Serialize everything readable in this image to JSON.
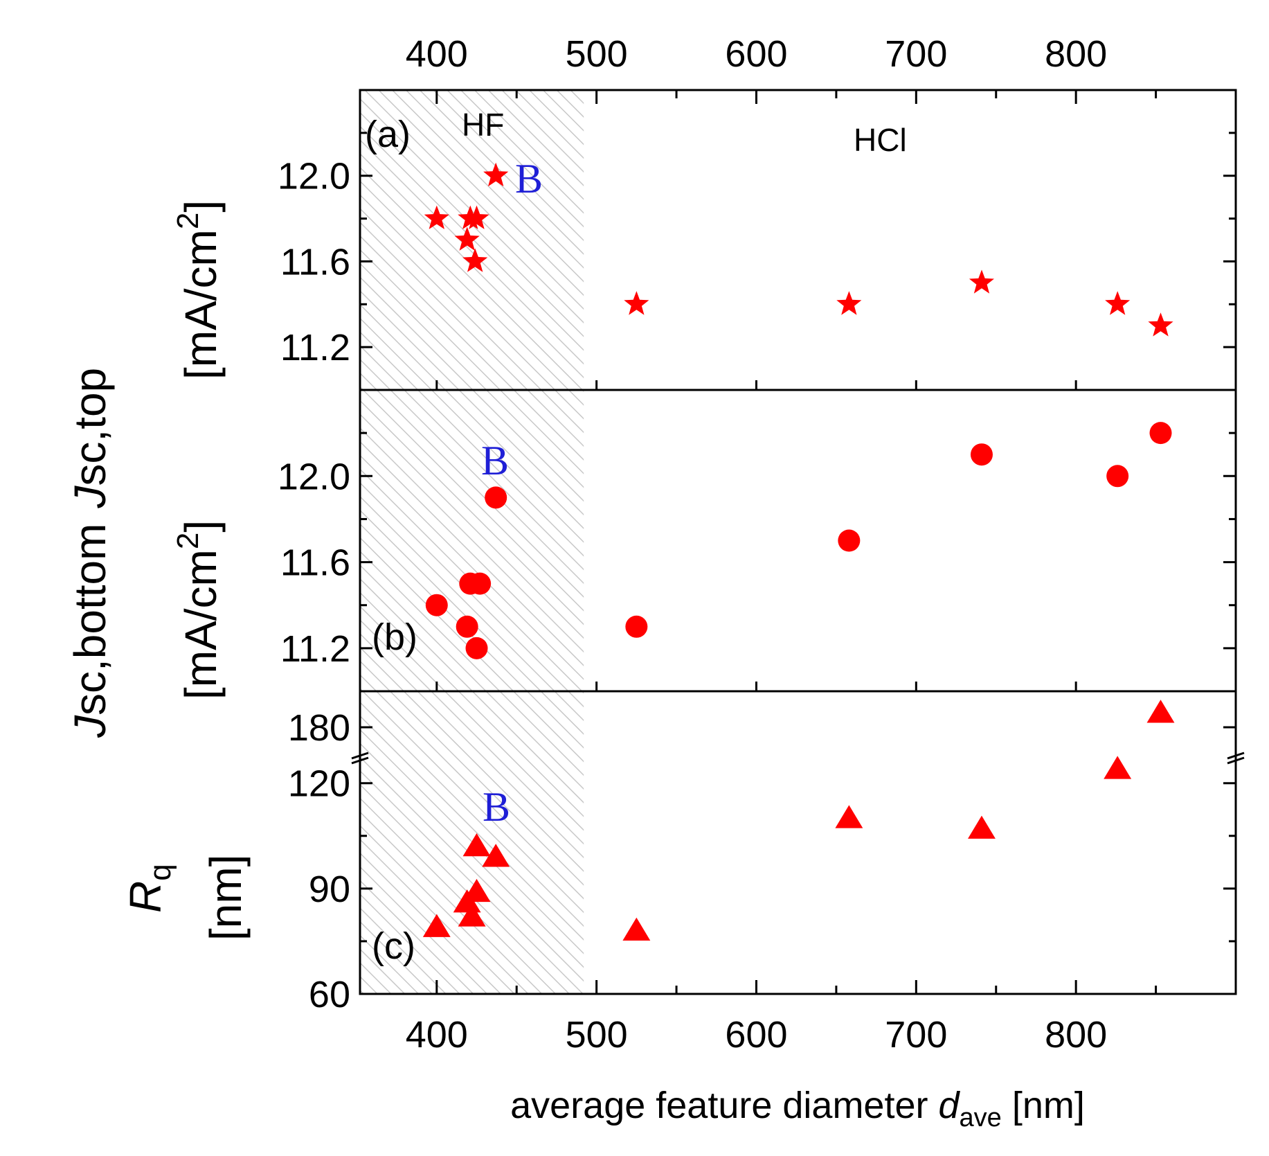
{
  "chart_data": [
    {
      "type": "scatter",
      "panel": "(a)",
      "marker": "star",
      "ylabel": "Jsc,top [mA/cm2]",
      "ylim": [
        11.0,
        12.4
      ],
      "yticks": [
        "11.2",
        "11.6",
        "12.0"
      ],
      "region_labels": [
        "HF",
        "HCl"
      ],
      "annotation": "B",
      "points": [
        {
          "x": 400,
          "y": 11.8
        },
        {
          "x": 419,
          "y": 11.7
        },
        {
          "x": 421,
          "y": 11.8
        },
        {
          "x": 425,
          "y": 11.8
        },
        {
          "x": 424,
          "y": 11.6
        },
        {
          "x": 437,
          "y": 12.0
        },
        {
          "x": 525,
          "y": 11.4
        },
        {
          "x": 658,
          "y": 11.4
        },
        {
          "x": 741,
          "y": 11.5
        },
        {
          "x": 826,
          "y": 11.4
        },
        {
          "x": 853,
          "y": 11.3
        }
      ]
    },
    {
      "type": "scatter",
      "panel": "(b)",
      "marker": "circle",
      "ylabel": "Jsc,bottom [mA/cm2]",
      "ylim": [
        11.0,
        12.4
      ],
      "yticks": [
        "11.2",
        "11.6",
        "12.0"
      ],
      "annotation": "B",
      "points": [
        {
          "x": 400,
          "y": 11.4
        },
        {
          "x": 419,
          "y": 11.3
        },
        {
          "x": 421,
          "y": 11.5
        },
        {
          "x": 427,
          "y": 11.5
        },
        {
          "x": 425,
          "y": 11.2
        },
        {
          "x": 437,
          "y": 11.9
        },
        {
          "x": 525,
          "y": 11.3
        },
        {
          "x": 658,
          "y": 11.7
        },
        {
          "x": 741,
          "y": 12.1
        },
        {
          "x": 826,
          "y": 12.0
        },
        {
          "x": 853,
          "y": 12.2
        }
      ]
    },
    {
      "type": "scatter",
      "panel": "(c)",
      "marker": "triangle",
      "ylabel": "Rq [nm]",
      "yticks": [
        "60",
        "90",
        "120",
        "180"
      ],
      "axis_break": true,
      "annotation": "B",
      "points": [
        {
          "x": 400,
          "y": 79
        },
        {
          "x": 419,
          "y": 86
        },
        {
          "x": 422,
          "y": 82
        },
        {
          "x": 425,
          "y": 89
        },
        {
          "x": 425,
          "y": 102
        },
        {
          "x": 437,
          "y": 99
        },
        {
          "x": 525,
          "y": 78
        },
        {
          "x": 658,
          "y": 110
        },
        {
          "x": 741,
          "y": 107
        },
        {
          "x": 826,
          "y": 124
        },
        {
          "x": 853,
          "y": 186
        }
      ]
    }
  ],
  "x_axis": {
    "label": "average feature diameter dave [nm]",
    "xlim": [
      352,
      900
    ],
    "ticks": [
      "400",
      "500",
      "600",
      "700",
      "800"
    ],
    "hf_region": [
      352,
      492
    ]
  },
  "text": {
    "top_ylabel_prefix": "J",
    "top_ylabel_sub": "sc,top",
    "top_unit": "[mA/cm",
    "top_unit_sup": "2",
    "top_unit_close": "]",
    "mid_ylabel_prefix": "J",
    "mid_ylabel_sub": "sc,bottom",
    "mid_unit": "[mA/cm",
    "mid_unit_sup": "2",
    "mid_unit_close": "]",
    "bot_ylabel_prefix": "R",
    "bot_ylabel_sub": "q",
    "bot_unit": "[nm]",
    "xlabel_main": "average feature diameter ",
    "xlabel_italic": "d",
    "xlabel_sub": "ave",
    "xlabel_unit": " [nm]",
    "panel_a": "(a)",
    "panel_b": "(b)",
    "panel_c": "(c)",
    "region_hf": "HF",
    "region_hcl": "HCl",
    "b_mark": "B"
  },
  "colors": {
    "marker": "#ff0000",
    "annotation": "#1f1fd6",
    "hatch": "#c8c8c8"
  }
}
